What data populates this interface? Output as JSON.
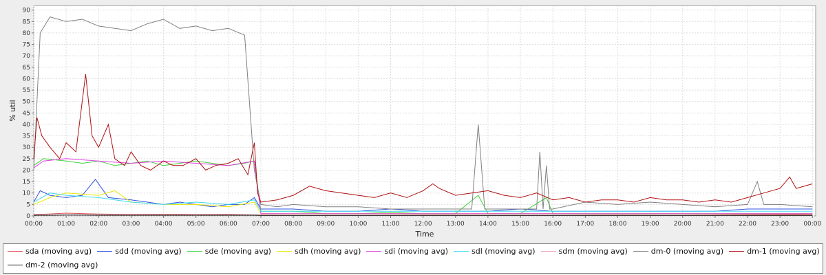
{
  "chart_data": {
    "type": "line",
    "xlabel": "Time",
    "ylabel": "% util",
    "ylim": [
      0,
      92
    ],
    "yticks": [
      0,
      5,
      10,
      15,
      20,
      25,
      30,
      35,
      40,
      45,
      50,
      55,
      60,
      65,
      70,
      75,
      80,
      85,
      90
    ],
    "xlim": [
      0,
      24.1
    ],
    "xticks": [
      "00:00",
      "01:00",
      "02:00",
      "03:00",
      "04:00",
      "05:00",
      "06:00",
      "07:00",
      "08:00",
      "09:00",
      "10:00",
      "11:00",
      "12:00",
      "13:00",
      "14:00",
      "15:00",
      "16:00",
      "17:00",
      "18:00",
      "19:00",
      "20:00",
      "21:00",
      "22:00",
      "23:00",
      "00:00"
    ],
    "grid": true,
    "legend_position": "bottom",
    "series": [
      {
        "name": "sda (moving avg)",
        "color": "#e05050",
        "x": [
          0,
          1,
          2,
          3,
          4,
          5,
          6,
          6.8,
          8,
          10,
          12,
          14,
          16,
          18,
          20,
          22,
          23.5,
          24
        ],
        "y": [
          0.5,
          1.2,
          0.8,
          0.6,
          0.7,
          0.5,
          0.6,
          0.4,
          0.3,
          0.3,
          0.4,
          0.3,
          0.3,
          0.4,
          0.3,
          0.5,
          0.6,
          0.5
        ]
      },
      {
        "name": "sdd (moving avg)",
        "color": "#3050e0",
        "x": [
          0,
          0.2,
          0.5,
          1,
          1.5,
          1.9,
          2.3,
          3,
          3.5,
          4,
          4.5,
          5,
          5.5,
          6,
          6.5,
          6.8,
          7,
          8,
          9,
          10,
          11,
          12,
          13,
          14,
          15,
          16,
          17,
          18,
          19,
          20,
          21,
          22,
          23,
          24
        ],
        "y": [
          6,
          11,
          9,
          8,
          9,
          16,
          8,
          7,
          6,
          5,
          6,
          5,
          4,
          5,
          5,
          8,
          3,
          3,
          2,
          2,
          3,
          2,
          2,
          2,
          3,
          2,
          2,
          2,
          2,
          2,
          2,
          3,
          3,
          3
        ]
      },
      {
        "name": "sde (moving avg)",
        "color": "#40d040",
        "x": [
          0,
          0.3,
          1,
          1.5,
          2,
          2.5,
          3,
          3.5,
          4,
          4.5,
          5,
          5.5,
          6,
          6.5,
          6.8,
          7,
          8,
          9,
          10,
          11,
          12,
          13,
          13.7,
          14,
          15,
          15.8,
          16,
          17,
          18,
          19,
          20,
          21,
          22,
          23,
          24
        ],
        "y": [
          22,
          25,
          24,
          23,
          24,
          22,
          23,
          24,
          22,
          23,
          24,
          23,
          22,
          23,
          24,
          2,
          2,
          1,
          1,
          1.5,
          1,
          1,
          9,
          1,
          1,
          8,
          1,
          1,
          1,
          1,
          1,
          1,
          1,
          1,
          1
        ]
      },
      {
        "name": "sdh (moving avg)",
        "color": "#e8e800",
        "x": [
          0,
          0.5,
          1,
          2,
          2.5,
          3,
          4,
          5,
          6,
          6.8,
          7,
          9,
          12,
          15,
          18,
          21,
          24
        ],
        "y": [
          5,
          8,
          10,
          9,
          11,
          6,
          5,
          5,
          4,
          6,
          1,
          1,
          1,
          1,
          1,
          1,
          1
        ]
      },
      {
        "name": "sdi (moving avg)",
        "color": "#e040e0",
        "x": [
          0,
          0.3,
          1,
          2,
          3,
          4,
          5,
          6,
          6.8,
          7,
          9,
          12,
          15,
          18,
          21,
          24
        ],
        "y": [
          21,
          24,
          25,
          24,
          23,
          24,
          23,
          22,
          24,
          1,
          1,
          1,
          1,
          1,
          1,
          1
        ]
      },
      {
        "name": "sdl (moving avg)",
        "color": "#40d8f0",
        "x": [
          0,
          0.5,
          1,
          2,
          3,
          4,
          5,
          6,
          6.8,
          7,
          9,
          12,
          15,
          18,
          21,
          24
        ],
        "y": [
          6,
          10,
          9,
          8,
          6,
          5,
          6,
          5,
          7,
          2,
          2,
          2,
          2,
          2,
          2,
          2
        ]
      },
      {
        "name": "sdm (moving avg)",
        "color": "#f0a0c0",
        "x": [
          0,
          2,
          4,
          6,
          6.8,
          7,
          10,
          14,
          18,
          22,
          24
        ],
        "y": [
          0.3,
          0.4,
          0.3,
          0.3,
          0.3,
          0.2,
          0.2,
          0.2,
          0.2,
          0.2,
          0.2
        ]
      },
      {
        "name": "dm-0 (moving avg)",
        "color": "#808080",
        "x": [
          0,
          0.2,
          0.5,
          1,
          1.5,
          2,
          2.5,
          3,
          3.5,
          4,
          4.5,
          5,
          5.5,
          6,
          6.5,
          6.8,
          7,
          7.5,
          8,
          9,
          10,
          11,
          12,
          13,
          13.5,
          13.7,
          13.9,
          14,
          15,
          15.5,
          15.6,
          15.7,
          15.8,
          15.9,
          16,
          17,
          18,
          19,
          20,
          21,
          22,
          22.3,
          22.5,
          23,
          24
        ],
        "y": [
          20,
          80,
          87,
          85,
          86,
          83,
          82,
          81,
          84,
          86,
          82,
          83,
          81,
          82,
          79,
          20,
          5,
          4,
          5,
          4,
          4,
          3,
          3,
          3,
          3,
          40,
          3,
          3,
          3,
          3,
          28,
          3,
          22,
          3,
          3,
          6,
          5,
          6,
          5,
          4,
          5,
          15,
          5,
          5,
          4
        ]
      },
      {
        "name": "dm-1 (moving avg)",
        "color": "#b01010",
        "x": [
          0,
          0.1,
          0.25,
          0.5,
          0.8,
          1,
          1.3,
          1.6,
          1.8,
          2,
          2.3,
          2.5,
          2.8,
          3,
          3.3,
          3.6,
          4,
          4.3,
          4.6,
          5,
          5.3,
          5.6,
          6,
          6.3,
          6.6,
          6.8,
          6.9,
          7,
          7.5,
          8,
          8.5,
          9,
          9.5,
          10,
          10.5,
          11,
          11.5,
          12,
          12.3,
          12.5,
          13,
          13.5,
          14,
          14.5,
          15,
          15.5,
          16,
          16.5,
          17,
          17.5,
          18,
          18.5,
          19,
          19.5,
          20,
          20.5,
          21,
          21.5,
          22,
          22.5,
          23,
          23.3,
          23.5,
          24
        ],
        "y": [
          25,
          43,
          35,
          30,
          25,
          32,
          28,
          62,
          35,
          30,
          40,
          25,
          22,
          28,
          22,
          20,
          24,
          22,
          22,
          25,
          20,
          22,
          23,
          25,
          18,
          32,
          10,
          6,
          7,
          9,
          13,
          11,
          10,
          9,
          8,
          10,
          8,
          11,
          14,
          12,
          9,
          10,
          11,
          9,
          8,
          10,
          7,
          8,
          6,
          7,
          7,
          6,
          8,
          7,
          7,
          6,
          7,
          6,
          8,
          10,
          12,
          17,
          12,
          14
        ]
      },
      {
        "name": "dm-2 (moving avg)",
        "color": "#111111",
        "x": [
          0,
          0.1,
          0.5,
          1,
          2,
          3,
          4,
          5,
          6,
          6.8,
          7,
          9,
          12,
          15,
          18,
          21,
          24
        ],
        "y": [
          0.2,
          0.3,
          0.3,
          0.4,
          0.3,
          0.3,
          0.3,
          0.3,
          0.3,
          0.3,
          0.2,
          0.2,
          0.2,
          0.2,
          0.2,
          0.2,
          0.2
        ]
      }
    ]
  }
}
